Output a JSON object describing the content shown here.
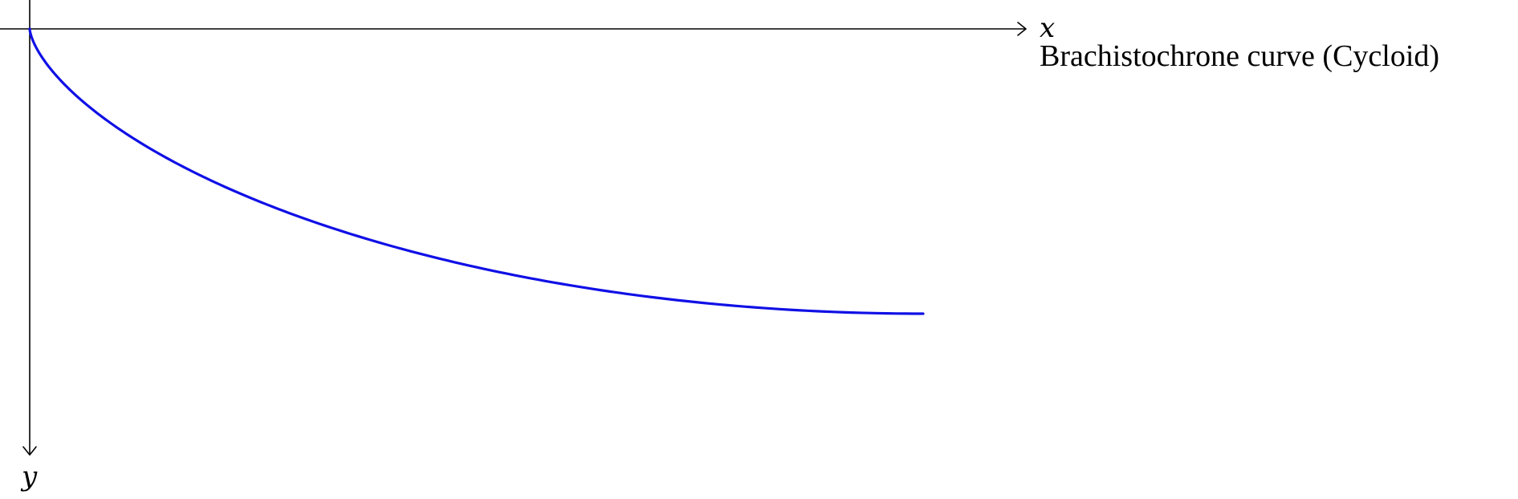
{
  "diagram": {
    "x_axis_label": "x",
    "y_axis_label": "y",
    "curve_label": "Brachistochrone curve (Cycloid)",
    "curve": {
      "type": "cycloid",
      "parameter_range": [
        0,
        3.14159
      ],
      "color": "#1010e6"
    },
    "axis_color": "#000000"
  }
}
